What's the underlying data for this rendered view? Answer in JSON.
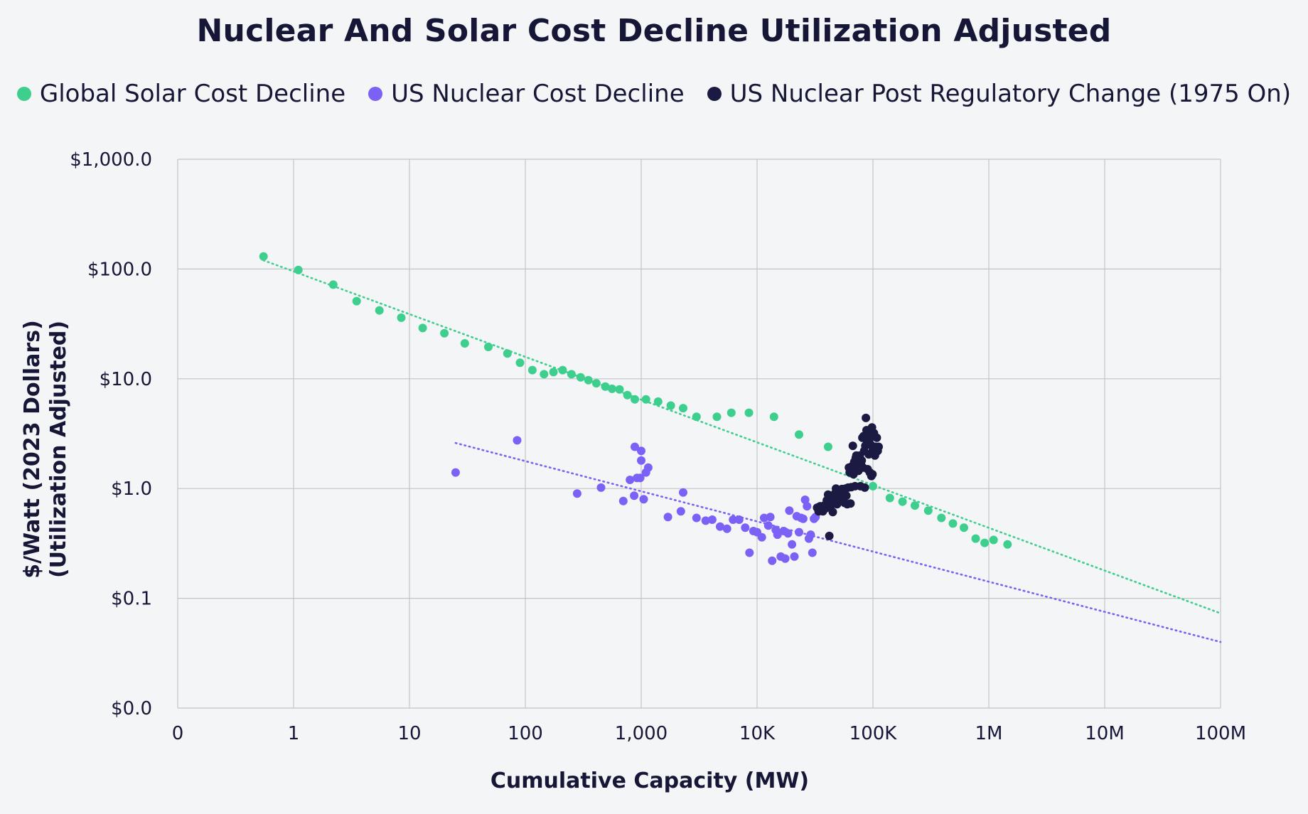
{
  "colors": {
    "solar": "#3ecf8e",
    "nuclear": "#7b61f5",
    "post": "#1b1a42",
    "grid": "#c4c4c8",
    "background": "#f4f5f7",
    "text": "#161736"
  },
  "chart_data": {
    "type": "scatter",
    "title": "Nuclear And Solar Cost Decline Utilization Adjusted",
    "xlabel": "Cumulative Capacity (MW)",
    "ylabel": [
      "$/Watt (2023 Dollars)",
      "(Utilization Adjusted)"
    ],
    "xscale": "log",
    "yscale": "log",
    "xlim": [
      0.1,
      100000000
    ],
    "ylim": [
      0.01,
      1000
    ],
    "xticks": [
      {
        "value": 0.1,
        "label": "0"
      },
      {
        "value": 1,
        "label": "1"
      },
      {
        "value": 10,
        "label": "10"
      },
      {
        "value": 100,
        "label": "100"
      },
      {
        "value": 1000,
        "label": "1,000"
      },
      {
        "value": 10000,
        "label": "10K"
      },
      {
        "value": 100000,
        "label": "100K"
      },
      {
        "value": 1000000,
        "label": "1M"
      },
      {
        "value": 10000000,
        "label": "10M"
      },
      {
        "value": 100000000,
        "label": "100M"
      }
    ],
    "yticks": [
      {
        "value": 0.01,
        "label": "$0.0"
      },
      {
        "value": 0.1,
        "label": "$0.1"
      },
      {
        "value": 1,
        "label": "$1.0"
      },
      {
        "value": 10,
        "label": "$10.0"
      },
      {
        "value": 100,
        "label": "$100.0"
      },
      {
        "value": 1000,
        "label": "$1,000.0"
      }
    ],
    "grid": true,
    "legend_position": "top",
    "series": [
      {
        "name": "Global Solar Cost Decline",
        "color": "#3ecf8e",
        "points": [
          [
            0.55,
            130
          ],
          [
            1.1,
            98
          ],
          [
            2.2,
            72
          ],
          [
            3.5,
            51
          ],
          [
            5.5,
            42
          ],
          [
            8.5,
            36
          ],
          [
            13,
            29
          ],
          [
            20,
            26
          ],
          [
            30,
            21
          ],
          [
            48,
            19.5
          ],
          [
            70,
            17
          ],
          [
            90,
            14
          ],
          [
            115,
            12
          ],
          [
            145,
            11
          ],
          [
            175,
            11.5
          ],
          [
            210,
            12
          ],
          [
            250,
            11
          ],
          [
            300,
            10.3
          ],
          [
            350,
            9.7
          ],
          [
            410,
            9.1
          ],
          [
            490,
            8.5
          ],
          [
            560,
            8.1
          ],
          [
            650,
            8.0
          ],
          [
            760,
            7.1
          ],
          [
            880,
            6.5
          ],
          [
            1100,
            6.5
          ],
          [
            1400,
            6.2
          ],
          [
            1800,
            5.7
          ],
          [
            2300,
            5.4
          ],
          [
            3000,
            4.5
          ],
          [
            4500,
            4.5
          ],
          [
            6000,
            4.9
          ],
          [
            8500,
            4.9
          ],
          [
            14000,
            4.5
          ],
          [
            23000,
            3.1
          ],
          [
            41000,
            2.4
          ],
          [
            70000,
            1.45
          ],
          [
            100000,
            1.05
          ],
          [
            140000,
            0.82
          ],
          [
            180000,
            0.76
          ],
          [
            230000,
            0.7
          ],
          [
            300000,
            0.63
          ],
          [
            390000,
            0.54
          ],
          [
            490000,
            0.48
          ],
          [
            610000,
            0.44
          ],
          [
            770000,
            0.35
          ],
          [
            920000,
            0.32
          ],
          [
            1100000,
            0.34
          ],
          [
            1450000,
            0.31
          ]
        ],
        "trend": [
          [
            0.55,
            120
          ],
          [
            100000000,
            0.073
          ]
        ]
      },
      {
        "name": "US Nuclear Cost Decline",
        "color": "#7b61f5",
        "points": [
          [
            25,
            1.4
          ],
          [
            85,
            2.75
          ],
          [
            280,
            0.9
          ],
          [
            450,
            1.02
          ],
          [
            700,
            0.77
          ],
          [
            800,
            1.2
          ],
          [
            870,
            0.86
          ],
          [
            880,
            2.4
          ],
          [
            920,
            1.25
          ],
          [
            980,
            1.25
          ],
          [
            1000,
            2.2
          ],
          [
            1000,
            1.8
          ],
          [
            1050,
            0.8
          ],
          [
            1100,
            1.4
          ],
          [
            1150,
            1.55
          ],
          [
            1700,
            0.55
          ],
          [
            2200,
            0.62
          ],
          [
            2300,
            0.92
          ],
          [
            3000,
            0.54
          ],
          [
            3600,
            0.51
          ],
          [
            4100,
            0.52
          ],
          [
            4800,
            0.45
          ],
          [
            5500,
            0.43
          ],
          [
            6200,
            0.52
          ],
          [
            7000,
            0.52
          ],
          [
            7900,
            0.44
          ],
          [
            8600,
            0.26
          ],
          [
            9300,
            0.41
          ],
          [
            10000,
            0.4
          ],
          [
            11000,
            0.36
          ],
          [
            11500,
            0.54
          ],
          [
            12500,
            0.46
          ],
          [
            13000,
            0.55
          ],
          [
            13500,
            0.22
          ],
          [
            14500,
            0.42
          ],
          [
            15000,
            0.38
          ],
          [
            16000,
            0.24
          ],
          [
            17000,
            0.41
          ],
          [
            17500,
            0.23
          ],
          [
            18500,
            0.39
          ],
          [
            19000,
            0.63
          ],
          [
            20000,
            0.31
          ],
          [
            21000,
            0.24
          ],
          [
            22000,
            0.56
          ],
          [
            23000,
            0.4
          ],
          [
            24000,
            0.54
          ],
          [
            25000,
            0.53
          ],
          [
            26000,
            0.79
          ],
          [
            27000,
            0.69
          ],
          [
            28000,
            0.35
          ],
          [
            29000,
            0.38
          ],
          [
            30000,
            0.26
          ],
          [
            31000,
            0.53
          ],
          [
            32000,
            0.55
          ]
        ],
        "trend": [
          [
            25,
            2.6
          ],
          [
            100000000,
            0.04
          ]
        ]
      },
      {
        "name": "US Nuclear Post Regulatory Change (1975 On)",
        "color": "#1b1a42",
        "points": [
          [
            33000,
            0.67
          ],
          [
            34000,
            0.62
          ],
          [
            35000,
            0.69
          ],
          [
            36000,
            0.65
          ],
          [
            37000,
            0.62
          ],
          [
            38000,
            0.7
          ],
          [
            39000,
            0.66
          ],
          [
            40000,
            0.78
          ],
          [
            41000,
            0.88
          ],
          [
            42000,
            0.37
          ],
          [
            43000,
            0.69
          ],
          [
            44000,
            0.82
          ],
          [
            45000,
            0.61
          ],
          [
            46000,
            0.75
          ],
          [
            47000,
            0.9
          ],
          [
            48000,
            1.0
          ],
          [
            49000,
            0.72
          ],
          [
            50000,
            0.83
          ],
          [
            51000,
            0.95
          ],
          [
            52000,
            0.78
          ],
          [
            53000,
            0.88
          ],
          [
            54000,
            0.99
          ],
          [
            55000,
            0.8
          ],
          [
            56000,
            0.91
          ],
          [
            57000,
            0.74
          ],
          [
            58000,
            1.0
          ],
          [
            59000,
            0.86
          ],
          [
            60000,
            0.72
          ],
          [
            61000,
            1.02
          ],
          [
            62000,
            1.55
          ],
          [
            63000,
            1.4
          ],
          [
            64000,
            0.73
          ],
          [
            65000,
            1.03
          ],
          [
            66000,
            1.6
          ],
          [
            67000,
            2.45
          ],
          [
            68000,
            1.35
          ],
          [
            69000,
            1.75
          ],
          [
            70000,
            1.05
          ],
          [
            71000,
            1.9
          ],
          [
            72000,
            2.0
          ],
          [
            73000,
            1.5
          ],
          [
            74000,
            1.7
          ],
          [
            75000,
            1.45
          ],
          [
            76000,
            1.55
          ],
          [
            77000,
            2.0
          ],
          [
            78000,
            1.05
          ],
          [
            79000,
            1.65
          ],
          [
            80000,
            1.8
          ],
          [
            81000,
            2.9
          ],
          [
            82000,
            1.55
          ],
          [
            83000,
            3.0
          ],
          [
            84000,
            2.2
          ],
          [
            85000,
            1.02
          ],
          [
            86000,
            2.45
          ],
          [
            87000,
            4.4
          ],
          [
            88000,
            3.4
          ],
          [
            89000,
            2.6
          ],
          [
            90000,
            1.5
          ],
          [
            91000,
            3.1
          ],
          [
            92000,
            2.05
          ],
          [
            93000,
            2.8
          ],
          [
            94000,
            1.4
          ],
          [
            95000,
            3.3
          ],
          [
            96000,
            2.5
          ],
          [
            97000,
            1.3
          ],
          [
            98000,
            3.6
          ],
          [
            99000,
            1.35
          ],
          [
            100000,
            2.25
          ],
          [
            102000,
            3.2
          ],
          [
            104000,
            2.0
          ],
          [
            106000,
            2.4
          ],
          [
            108000,
            2.9
          ],
          [
            110000,
            2.2
          ],
          [
            112000,
            2.4
          ]
        ]
      }
    ]
  }
}
